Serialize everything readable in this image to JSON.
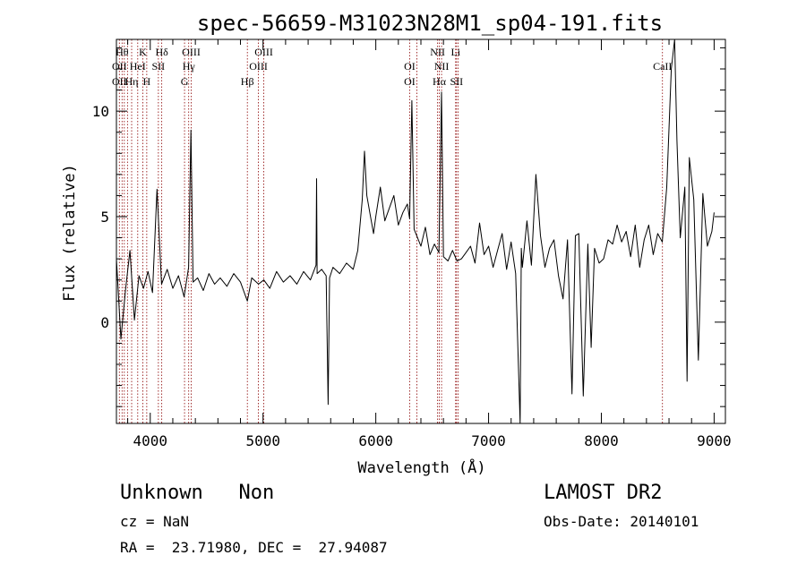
{
  "chart_data": {
    "type": "line",
    "title": "spec-56659-M31023N28M1_sp04-191.fits",
    "xlabel": "Wavelength (Å)",
    "ylabel": "Flux (relative)",
    "xlim": [
      3700,
      9100
    ],
    "ylim": [
      -4.8,
      13.4
    ],
    "xticks": [
      4000,
      5000,
      6000,
      7000,
      8000,
      9000
    ],
    "yticks": [
      0,
      5,
      10
    ],
    "grid": false,
    "legend": "none",
    "line_color": "#000000",
    "marker_line_color": "#8b0000",
    "series": [
      {
        "x": [
          3700,
          3740,
          3780,
          3820,
          3860,
          3900,
          3940,
          3980,
          4020,
          4060,
          4100,
          4150,
          4200,
          4250,
          4300,
          4340,
          4361,
          4380,
          4420,
          4470,
          4520,
          4570,
          4620,
          4680,
          4740,
          4800,
          4861,
          4900,
          4960,
          5007,
          5060,
          5120,
          5180,
          5240,
          5300,
          5360,
          5420,
          5470,
          5475,
          5480,
          5520,
          5560,
          5577,
          5590,
          5620,
          5680,
          5740,
          5800,
          5840,
          5880,
          5900,
          5920,
          5950,
          5980,
          6000,
          6040,
          6080,
          6120,
          6160,
          6200,
          6240,
          6280,
          6300,
          6320,
          6340,
          6363,
          6400,
          6440,
          6480,
          6520,
          6560,
          6583,
          6600,
          6640,
          6680,
          6720,
          6760,
          6800,
          6840,
          6880,
          6920,
          6960,
          7000,
          7040,
          7080,
          7120,
          7160,
          7200,
          7240,
          7280,
          7290,
          7300,
          7340,
          7380,
          7420,
          7460,
          7500,
          7540,
          7580,
          7620,
          7660,
          7700,
          7740,
          7770,
          7800,
          7840,
          7880,
          7910,
          7940,
          7980,
          8020,
          8060,
          8100,
          8140,
          8180,
          8220,
          8260,
          8300,
          8340,
          8380,
          8420,
          8460,
          8500,
          8540,
          8580,
          8620,
          8650,
          8670,
          8700,
          8740,
          8760,
          8780,
          8820,
          8860,
          8900,
          8940,
          8980,
          9000
        ],
        "y": [
          3.0,
          -0.8,
          1.5,
          3.4,
          0.1,
          2.2,
          1.6,
          2.4,
          1.4,
          6.3,
          1.8,
          2.5,
          1.6,
          2.2,
          1.2,
          2.6,
          9.1,
          1.9,
          2.1,
          1.5,
          2.3,
          1.8,
          2.1,
          1.7,
          2.3,
          1.9,
          1.0,
          2.1,
          1.8,
          2.0,
          1.6,
          2.4,
          1.9,
          2.2,
          1.8,
          2.4,
          2.0,
          2.7,
          6.8,
          2.3,
          2.5,
          2.2,
          -3.9,
          2.1,
          2.6,
          2.3,
          2.8,
          2.5,
          3.4,
          5.8,
          8.1,
          6.0,
          5.1,
          4.2,
          5.0,
          6.4,
          4.8,
          5.4,
          6.0,
          4.6,
          5.2,
          5.6,
          4.9,
          10.5,
          4.4,
          4.1,
          3.6,
          4.5,
          3.2,
          3.7,
          3.3,
          10.9,
          3.1,
          2.9,
          3.4,
          2.9,
          3.0,
          3.3,
          3.6,
          2.8,
          4.7,
          3.2,
          3.6,
          2.6,
          3.4,
          4.2,
          2.5,
          3.8,
          2.3,
          -4.8,
          3.5,
          2.6,
          4.8,
          2.7,
          7.0,
          4.1,
          2.6,
          3.5,
          3.9,
          2.2,
          1.1,
          3.9,
          -3.4,
          4.1,
          4.2,
          -3.5,
          3.7,
          -1.2,
          3.5,
          2.8,
          3.0,
          3.9,
          3.7,
          4.6,
          3.8,
          4.3,
          3.1,
          4.6,
          2.6,
          3.9,
          4.6,
          3.2,
          4.2,
          3.8,
          6.4,
          12.0,
          13.4,
          8.6,
          4.0,
          6.4,
          -2.8,
          7.8,
          5.8,
          -1.8,
          6.1,
          3.6,
          4.3,
          5.2
        ]
      }
    ],
    "line_markers": [
      {
        "x": 3726,
        "labels": [
          "",
          "OII",
          "OII"
        ]
      },
      {
        "x": 3750,
        "labels": [
          "Hθ",
          "",
          ""
        ]
      },
      {
        "x": 3770,
        "labels": [
          "",
          "",
          ""
        ]
      },
      {
        "x": 3798,
        "labels": [
          "",
          "",
          ""
        ]
      },
      {
        "x": 3835,
        "labels": [
          "",
          "",
          "Hη"
        ]
      },
      {
        "x": 3889,
        "labels": [
          "",
          "HeI",
          ""
        ]
      },
      {
        "x": 3934,
        "labels": [
          "K",
          "",
          ""
        ]
      },
      {
        "x": 3969,
        "labels": [
          "",
          "",
          "H"
        ]
      },
      {
        "x": 4072,
        "labels": [
          "",
          "SII",
          ""
        ]
      },
      {
        "x": 4102,
        "labels": [
          "Hδ",
          "",
          ""
        ]
      },
      {
        "x": 4304,
        "labels": [
          "",
          "",
          "G"
        ]
      },
      {
        "x": 4341,
        "labels": [
          "",
          "Hγ",
          ""
        ]
      },
      {
        "x": 4363,
        "labels": [
          "OIII",
          "",
          ""
        ]
      },
      {
        "x": 4861,
        "labels": [
          "",
          "",
          "Hβ"
        ]
      },
      {
        "x": 4959,
        "labels": [
          "",
          "OIII",
          ""
        ]
      },
      {
        "x": 5007,
        "labels": [
          "OIII",
          "",
          ""
        ]
      },
      {
        "x": 6300,
        "labels": [
          "",
          "OI",
          "OI"
        ]
      },
      {
        "x": 6364,
        "labels": [
          "",
          "",
          ""
        ]
      },
      {
        "x": 6548,
        "labels": [
          "NII",
          "",
          ""
        ]
      },
      {
        "x": 6563,
        "labels": [
          "",
          "",
          "Hα"
        ]
      },
      {
        "x": 6583,
        "labels": [
          "",
          "NII",
          ""
        ]
      },
      {
        "x": 6708,
        "labels": [
          "Li",
          "",
          ""
        ]
      },
      {
        "x": 6716,
        "labels": [
          "",
          "",
          "SII"
        ]
      },
      {
        "x": 6731,
        "labels": [
          "",
          "",
          ""
        ]
      },
      {
        "x": 8542,
        "labels": [
          "",
          "CaII",
          ""
        ]
      }
    ]
  },
  "footer": {
    "class_label": "Unknown   Non",
    "survey": "LAMOST DR2",
    "redshift_line": "cz = NaN",
    "obs_date_line": "Obs-Date: 20140101",
    "coords_line": "RA =  23.71980, DEC =  27.94087"
  }
}
